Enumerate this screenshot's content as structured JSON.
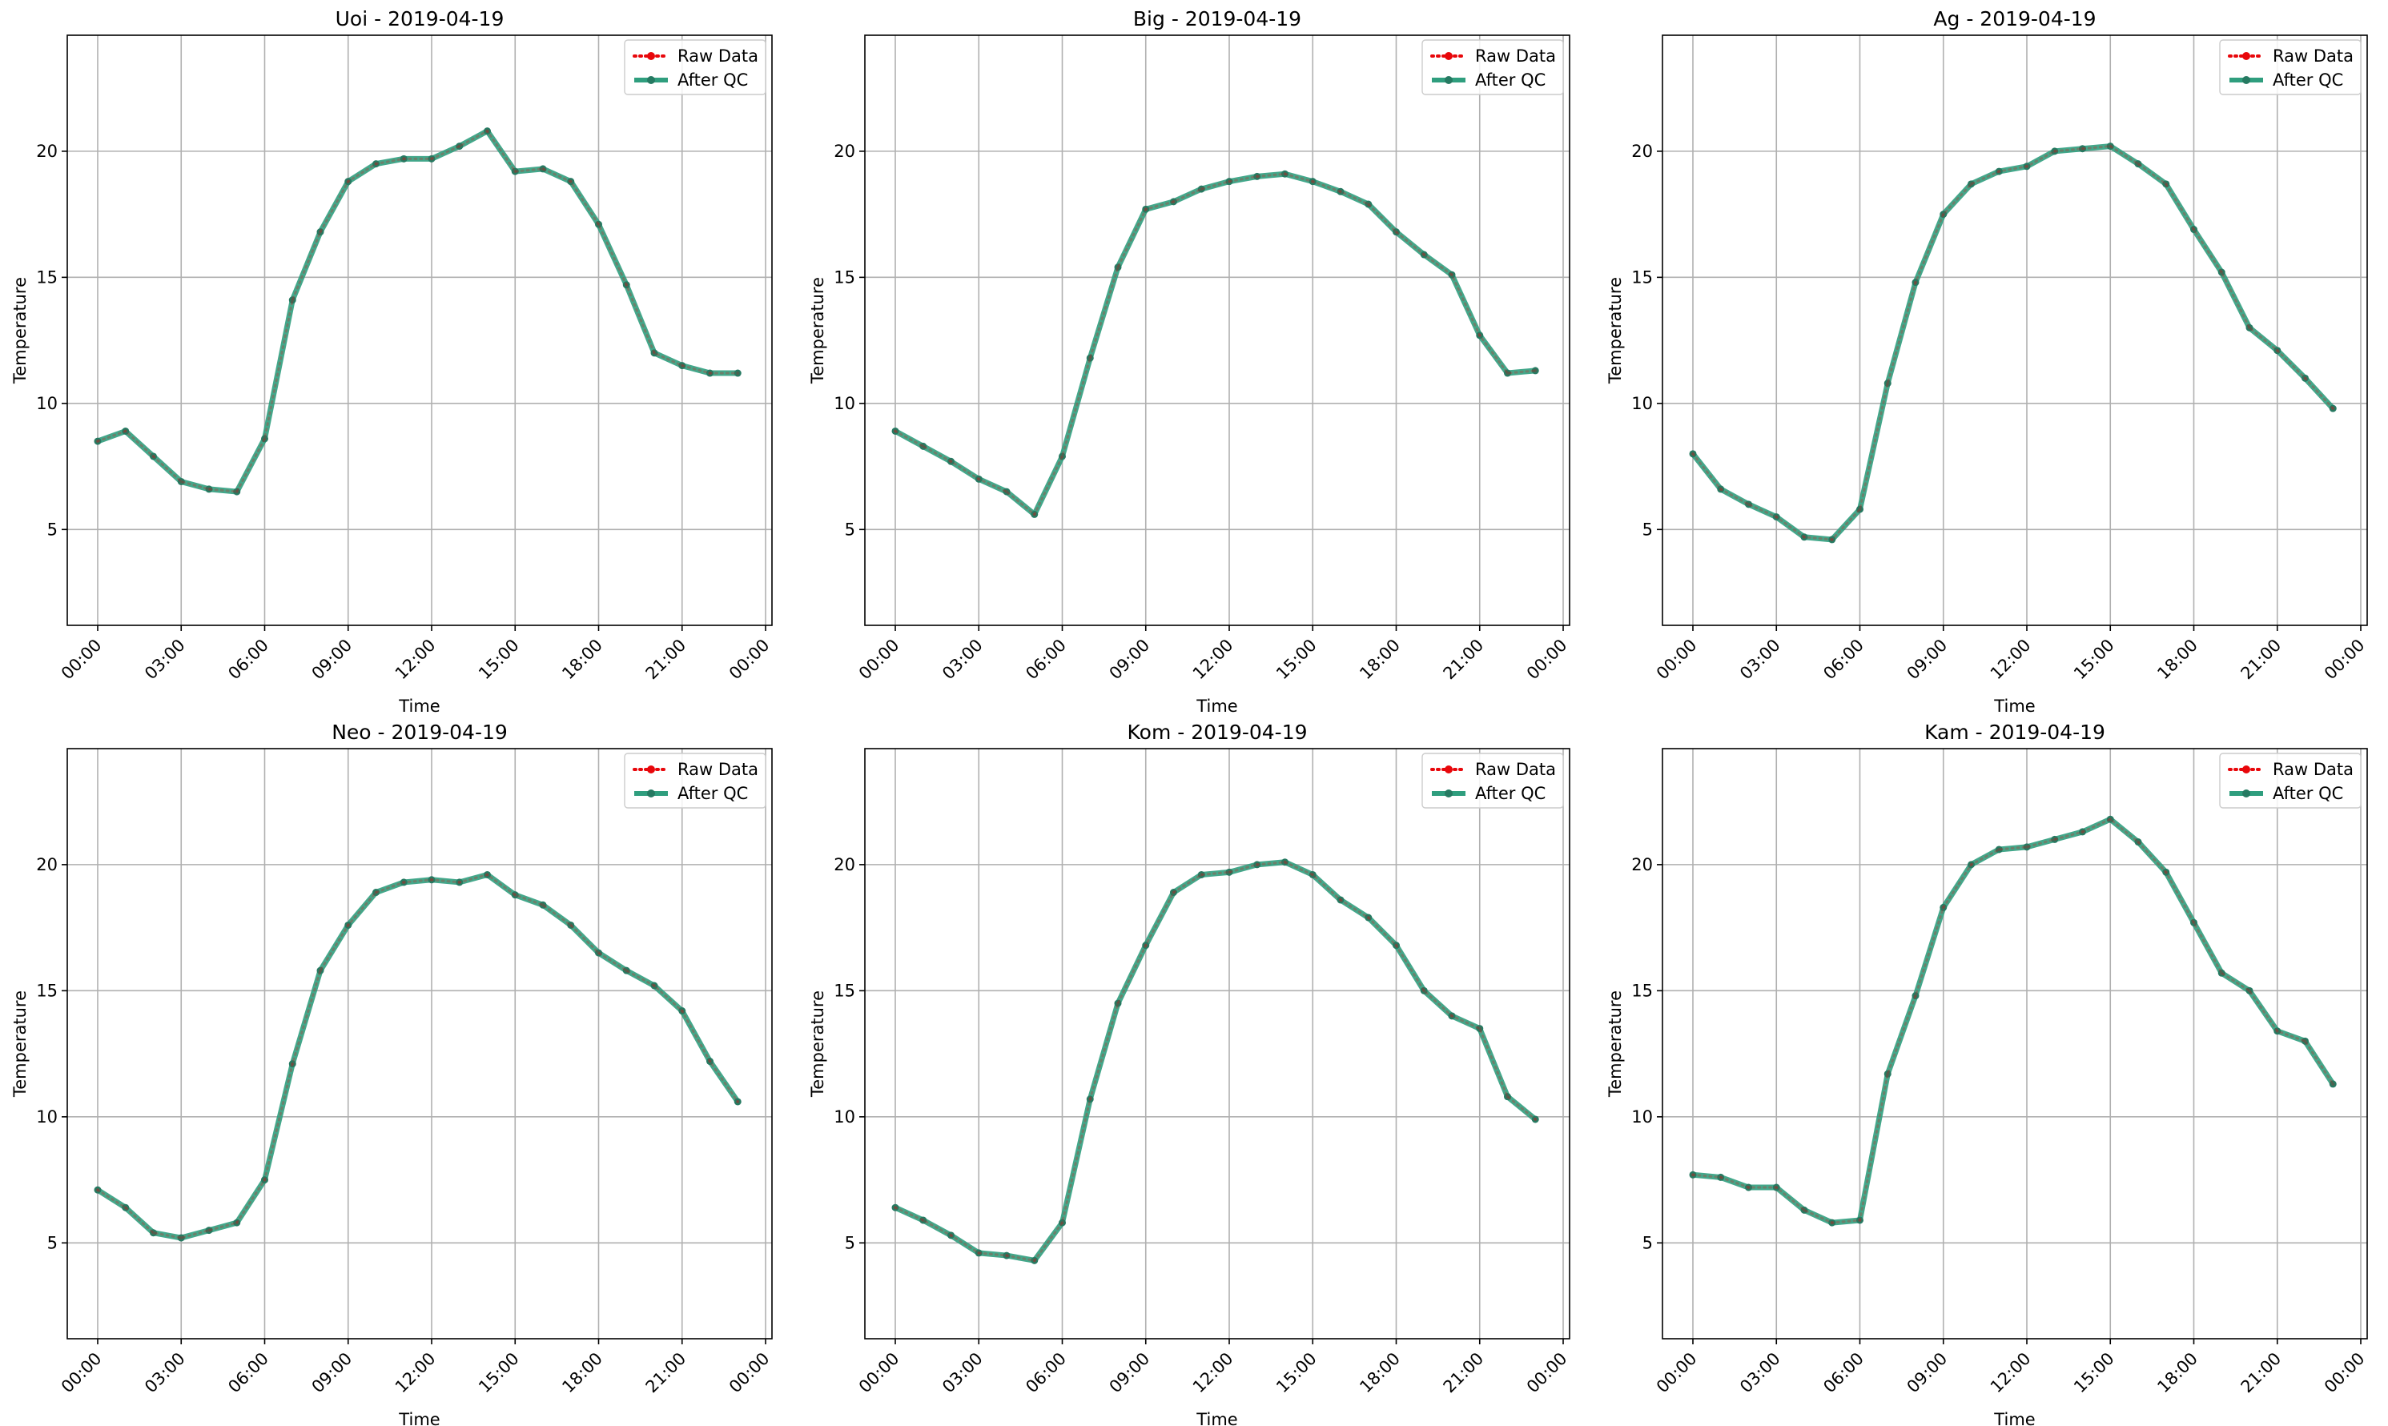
{
  "chart_data": [
    {
      "type": "line",
      "title": "Uoi - 2019-04-19",
      "xlabel": "Time",
      "ylabel": "Temperature",
      "ylim": [
        1.2,
        24.6
      ],
      "grid": true,
      "legend_position": "top-right",
      "x_ticks": [
        "00:00",
        "03:00",
        "06:00",
        "09:00",
        "12:00",
        "15:00",
        "18:00",
        "21:00",
        "00:00"
      ],
      "y_ticks": [
        5,
        10,
        15,
        20
      ],
      "x": [
        "00:00",
        "01:00",
        "02:00",
        "03:00",
        "04:00",
        "05:00",
        "06:00",
        "07:00",
        "08:00",
        "09:00",
        "10:00",
        "11:00",
        "12:00",
        "13:00",
        "14:00",
        "15:00",
        "16:00",
        "17:00",
        "18:00",
        "19:00",
        "20:00",
        "21:00",
        "22:00",
        "23:00"
      ],
      "series": [
        {
          "name": "Raw Data",
          "values": [
            8.5,
            8.9,
            7.9,
            6.9,
            6.6,
            6.5,
            8.6,
            14.1,
            16.8,
            18.8,
            19.5,
            19.7,
            19.7,
            20.2,
            20.8,
            19.2,
            19.3,
            18.8,
            17.1,
            14.7,
            12.0,
            11.5,
            11.2,
            11.2
          ]
        },
        {
          "name": "After QC",
          "values": [
            8.5,
            8.9,
            7.9,
            6.9,
            6.6,
            6.5,
            8.6,
            14.1,
            16.8,
            18.8,
            19.5,
            19.7,
            19.7,
            20.2,
            20.8,
            19.2,
            19.3,
            18.8,
            17.1,
            14.7,
            12.0,
            11.5,
            11.2,
            11.2
          ]
        }
      ]
    },
    {
      "type": "line",
      "title": "Big - 2019-04-19",
      "xlabel": "Time",
      "ylabel": "Temperature",
      "ylim": [
        1.2,
        24.6
      ],
      "grid": true,
      "legend_position": "top-right",
      "x_ticks": [
        "00:00",
        "03:00",
        "06:00",
        "09:00",
        "12:00",
        "15:00",
        "18:00",
        "21:00",
        "00:00"
      ],
      "y_ticks": [
        5,
        10,
        15,
        20
      ],
      "x": [
        "00:00",
        "01:00",
        "02:00",
        "03:00",
        "04:00",
        "05:00",
        "06:00",
        "07:00",
        "08:00",
        "09:00",
        "10:00",
        "11:00",
        "12:00",
        "13:00",
        "14:00",
        "15:00",
        "16:00",
        "17:00",
        "18:00",
        "19:00",
        "20:00",
        "21:00",
        "22:00",
        "23:00"
      ],
      "series": [
        {
          "name": "Raw Data",
          "values": [
            8.9,
            8.3,
            7.7,
            7.0,
            6.5,
            5.6,
            7.9,
            11.8,
            15.4,
            17.7,
            18.0,
            18.5,
            18.8,
            19.0,
            19.1,
            18.8,
            18.4,
            17.9,
            16.8,
            15.9,
            15.1,
            12.7,
            11.2,
            11.3
          ]
        },
        {
          "name": "After QC",
          "values": [
            8.9,
            8.3,
            7.7,
            7.0,
            6.5,
            5.6,
            7.9,
            11.8,
            15.4,
            17.7,
            18.0,
            18.5,
            18.8,
            19.0,
            19.1,
            18.8,
            18.4,
            17.9,
            16.8,
            15.9,
            15.1,
            12.7,
            11.2,
            11.3
          ]
        }
      ]
    },
    {
      "type": "line",
      "title": "Ag - 2019-04-19",
      "xlabel": "Time",
      "ylabel": "Temperature",
      "ylim": [
        1.2,
        24.6
      ],
      "grid": true,
      "legend_position": "top-right",
      "x_ticks": [
        "00:00",
        "03:00",
        "06:00",
        "09:00",
        "12:00",
        "15:00",
        "18:00",
        "21:00",
        "00:00"
      ],
      "y_ticks": [
        5,
        10,
        15,
        20
      ],
      "x": [
        "00:00",
        "01:00",
        "02:00",
        "03:00",
        "04:00",
        "05:00",
        "06:00",
        "07:00",
        "08:00",
        "09:00",
        "10:00",
        "11:00",
        "12:00",
        "13:00",
        "14:00",
        "15:00",
        "16:00",
        "17:00",
        "18:00",
        "19:00",
        "20:00",
        "21:00",
        "22:00",
        "23:00"
      ],
      "series": [
        {
          "name": "Raw Data",
          "values": [
            8.0,
            6.6,
            6.0,
            5.5,
            4.7,
            4.6,
            5.8,
            10.8,
            14.8,
            17.5,
            18.7,
            19.2,
            19.4,
            20.0,
            20.1,
            20.2,
            19.5,
            18.7,
            16.9,
            15.2,
            13.0,
            12.1,
            11.0,
            9.8
          ]
        },
        {
          "name": "After QC",
          "values": [
            8.0,
            6.6,
            6.0,
            5.5,
            4.7,
            4.6,
            5.8,
            10.8,
            14.8,
            17.5,
            18.7,
            19.2,
            19.4,
            20.0,
            20.1,
            20.2,
            19.5,
            18.7,
            16.9,
            15.2,
            13.0,
            12.1,
            11.0,
            9.8
          ]
        }
      ]
    },
    {
      "type": "line",
      "title": "Neo - 2019-04-19",
      "xlabel": "Time",
      "ylabel": "Temperature",
      "ylim": [
        1.2,
        24.6
      ],
      "grid": true,
      "legend_position": "top-right",
      "x_ticks": [
        "00:00",
        "03:00",
        "06:00",
        "09:00",
        "12:00",
        "15:00",
        "18:00",
        "21:00",
        "00:00"
      ],
      "y_ticks": [
        5,
        10,
        15,
        20
      ],
      "x": [
        "00:00",
        "01:00",
        "02:00",
        "03:00",
        "04:00",
        "05:00",
        "06:00",
        "07:00",
        "08:00",
        "09:00",
        "10:00",
        "11:00",
        "12:00",
        "13:00",
        "14:00",
        "15:00",
        "16:00",
        "17:00",
        "18:00",
        "19:00",
        "20:00",
        "21:00",
        "22:00",
        "23:00"
      ],
      "series": [
        {
          "name": "Raw Data",
          "values": [
            7.1,
            6.4,
            5.4,
            5.2,
            5.5,
            5.8,
            7.5,
            12.1,
            15.8,
            17.6,
            18.9,
            19.3,
            19.4,
            19.3,
            19.6,
            18.8,
            18.4,
            17.6,
            16.5,
            15.8,
            15.2,
            14.2,
            12.2,
            10.6
          ]
        },
        {
          "name": "After QC",
          "values": [
            7.1,
            6.4,
            5.4,
            5.2,
            5.5,
            5.8,
            7.5,
            12.1,
            15.8,
            17.6,
            18.9,
            19.3,
            19.4,
            19.3,
            19.6,
            18.8,
            18.4,
            17.6,
            16.5,
            15.8,
            15.2,
            14.2,
            12.2,
            10.6
          ]
        }
      ]
    },
    {
      "type": "line",
      "title": "Kom - 2019-04-19",
      "xlabel": "Time",
      "ylabel": "Temperature",
      "ylim": [
        1.2,
        24.6
      ],
      "grid": true,
      "legend_position": "top-right",
      "x_ticks": [
        "00:00",
        "03:00",
        "06:00",
        "09:00",
        "12:00",
        "15:00",
        "18:00",
        "21:00",
        "00:00"
      ],
      "y_ticks": [
        5,
        10,
        15,
        20
      ],
      "x": [
        "00:00",
        "01:00",
        "02:00",
        "03:00",
        "04:00",
        "05:00",
        "06:00",
        "07:00",
        "08:00",
        "09:00",
        "10:00",
        "11:00",
        "12:00",
        "13:00",
        "14:00",
        "15:00",
        "16:00",
        "17:00",
        "18:00",
        "19:00",
        "20:00",
        "21:00",
        "22:00",
        "23:00"
      ],
      "series": [
        {
          "name": "Raw Data",
          "values": [
            6.4,
            5.9,
            5.3,
            4.6,
            4.5,
            4.3,
            5.8,
            10.7,
            14.5,
            16.8,
            18.9,
            19.6,
            19.7,
            20.0,
            20.1,
            19.6,
            18.6,
            17.9,
            16.8,
            15.0,
            14.0,
            13.5,
            10.8,
            9.9
          ]
        },
        {
          "name": "After QC",
          "values": [
            6.4,
            5.9,
            5.3,
            4.6,
            4.5,
            4.3,
            5.8,
            10.7,
            14.5,
            16.8,
            18.9,
            19.6,
            19.7,
            20.0,
            20.1,
            19.6,
            18.6,
            17.9,
            16.8,
            15.0,
            14.0,
            13.5,
            10.8,
            9.9
          ]
        }
      ]
    },
    {
      "type": "line",
      "title": "Kam - 2019-04-19",
      "xlabel": "Time",
      "ylabel": "Temperature",
      "ylim": [
        1.2,
        24.6
      ],
      "grid": true,
      "legend_position": "top-right",
      "x_ticks": [
        "00:00",
        "03:00",
        "06:00",
        "09:00",
        "12:00",
        "15:00",
        "18:00",
        "21:00",
        "00:00"
      ],
      "y_ticks": [
        5,
        10,
        15,
        20
      ],
      "x": [
        "00:00",
        "01:00",
        "02:00",
        "03:00",
        "04:00",
        "05:00",
        "06:00",
        "07:00",
        "08:00",
        "09:00",
        "10:00",
        "11:00",
        "12:00",
        "13:00",
        "14:00",
        "15:00",
        "16:00",
        "17:00",
        "18:00",
        "19:00",
        "20:00",
        "21:00",
        "22:00",
        "23:00"
      ],
      "series": [
        {
          "name": "Raw Data",
          "values": [
            7.7,
            7.6,
            7.2,
            7.2,
            6.3,
            5.8,
            5.9,
            11.7,
            14.8,
            18.3,
            20.0,
            20.6,
            20.7,
            21.0,
            21.3,
            21.8,
            20.9,
            19.7,
            17.7,
            15.7,
            15.0,
            13.4,
            13.0,
            11.3
          ]
        },
        {
          "name": "After QC",
          "values": [
            7.7,
            7.6,
            7.2,
            7.2,
            6.3,
            5.8,
            5.9,
            11.7,
            14.8,
            18.3,
            20.0,
            20.6,
            20.7,
            21.0,
            21.3,
            21.8,
            20.9,
            19.7,
            17.7,
            15.7,
            15.0,
            13.4,
            13.0,
            11.3
          ]
        }
      ]
    }
  ],
  "colors": {
    "raw": "#e8070b",
    "qc": "#2f9e7e",
    "qc_marker": "#267a62",
    "grid": "#b0b0b0",
    "axis": "#000000"
  }
}
